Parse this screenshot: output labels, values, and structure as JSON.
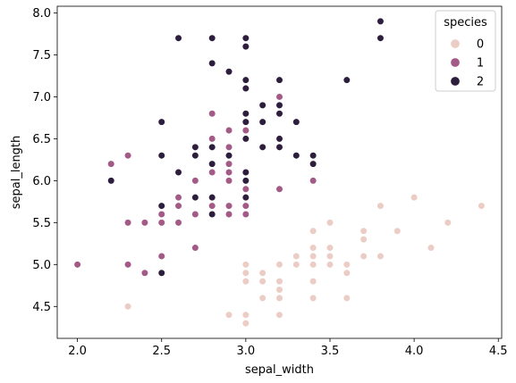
{
  "chart_data": {
    "type": "scatter",
    "xlabel": "sepal_width",
    "ylabel": "sepal_length",
    "xlim": [
      1.88,
      4.52
    ],
    "ylim": [
      4.12,
      8.08
    ],
    "xticks": [
      "2.0",
      "2.5",
      "3.0",
      "3.5",
      "4.0",
      "4.5"
    ],
    "yticks": [
      "4.5",
      "5.0",
      "5.5",
      "6.0",
      "6.5",
      "7.0",
      "7.5",
      "8.0"
    ],
    "grid": false,
    "legend": {
      "title": "species",
      "placement": "top-right"
    },
    "series": [
      {
        "name": "0",
        "color": "#ebcdc6",
        "points": [
          [
            3.0,
            4.4
          ],
          [
            3.0,
            4.3
          ],
          [
            2.9,
            4.4
          ],
          [
            3.2,
            4.4
          ],
          [
            2.3,
            4.5
          ],
          [
            3.1,
            4.6
          ],
          [
            3.2,
            4.6
          ],
          [
            3.4,
            4.6
          ],
          [
            3.6,
            4.6
          ],
          [
            3.2,
            4.7
          ],
          [
            3.2,
            4.8
          ],
          [
            3.0,
            4.8
          ],
          [
            3.1,
            4.8
          ],
          [
            3.4,
            4.8
          ],
          [
            3.0,
            4.9
          ],
          [
            3.1,
            4.9
          ],
          [
            3.6,
            4.9
          ],
          [
            3.0,
            5.0
          ],
          [
            3.2,
            5.0
          ],
          [
            3.3,
            5.0
          ],
          [
            3.4,
            5.0
          ],
          [
            3.5,
            5.0
          ],
          [
            3.6,
            5.0
          ],
          [
            3.3,
            5.1
          ],
          [
            3.4,
            5.1
          ],
          [
            3.5,
            5.1
          ],
          [
            3.7,
            5.1
          ],
          [
            3.8,
            5.1
          ],
          [
            3.4,
            5.2
          ],
          [
            3.5,
            5.2
          ],
          [
            4.1,
            5.2
          ],
          [
            3.7,
            5.3
          ],
          [
            3.4,
            5.4
          ],
          [
            3.7,
            5.4
          ],
          [
            3.9,
            5.4
          ],
          [
            3.5,
            5.5
          ],
          [
            4.2,
            5.5
          ],
          [
            3.8,
            5.7
          ],
          [
            4.4,
            5.7
          ],
          [
            4.0,
            5.8
          ]
        ]
      },
      {
        "name": "1",
        "color": "#a35a87",
        "points": [
          [
            2.0,
            5.0
          ],
          [
            2.3,
            5.0
          ],
          [
            2.4,
            4.9
          ],
          [
            2.5,
            5.1
          ],
          [
            2.7,
            5.2
          ],
          [
            2.3,
            5.5
          ],
          [
            2.4,
            5.5
          ],
          [
            2.5,
            5.5
          ],
          [
            2.6,
            5.5
          ],
          [
            2.5,
            5.6
          ],
          [
            2.7,
            5.6
          ],
          [
            2.9,
            5.6
          ],
          [
            3.0,
            5.6
          ],
          [
            2.6,
            5.7
          ],
          [
            2.8,
            5.7
          ],
          [
            2.9,
            5.7
          ],
          [
            3.0,
            5.7
          ],
          [
            2.6,
            5.8
          ],
          [
            2.7,
            5.8
          ],
          [
            3.0,
            5.9
          ],
          [
            3.2,
            5.9
          ],
          [
            2.2,
            6.0
          ],
          [
            2.7,
            6.0
          ],
          [
            2.9,
            6.0
          ],
          [
            3.4,
            6.0
          ],
          [
            2.8,
            6.1
          ],
          [
            2.9,
            6.1
          ],
          [
            3.0,
            6.1
          ],
          [
            2.2,
            6.2
          ],
          [
            2.9,
            6.2
          ],
          [
            2.3,
            6.3
          ],
          [
            2.5,
            6.3
          ],
          [
            3.3,
            6.3
          ],
          [
            2.9,
            6.4
          ],
          [
            3.2,
            6.4
          ],
          [
            2.8,
            6.5
          ],
          [
            2.9,
            6.6
          ],
          [
            3.0,
            6.6
          ],
          [
            3.0,
            6.7
          ],
          [
            3.1,
            6.7
          ],
          [
            2.8,
            6.8
          ],
          [
            3.1,
            6.9
          ],
          [
            3.2,
            7.0
          ]
        ]
      },
      {
        "name": "2",
        "color": "#2d1e3e",
        "points": [
          [
            2.5,
            4.9
          ],
          [
            2.5,
            5.7
          ],
          [
            2.8,
            5.6
          ],
          [
            2.8,
            5.8
          ],
          [
            2.7,
            5.8
          ],
          [
            3.0,
            5.8
          ],
          [
            2.2,
            6.0
          ],
          [
            3.0,
            6.0
          ],
          [
            3.0,
            6.1
          ],
          [
            2.6,
            6.1
          ],
          [
            2.8,
            6.2
          ],
          [
            3.4,
            6.2
          ],
          [
            2.5,
            6.3
          ],
          [
            2.7,
            6.3
          ],
          [
            2.9,
            6.3
          ],
          [
            3.3,
            6.3
          ],
          [
            3.4,
            6.3
          ],
          [
            2.7,
            6.4
          ],
          [
            2.8,
            6.4
          ],
          [
            3.1,
            6.4
          ],
          [
            3.2,
            6.4
          ],
          [
            3.0,
            6.5
          ],
          [
            3.2,
            6.5
          ],
          [
            2.5,
            6.7
          ],
          [
            3.0,
            6.7
          ],
          [
            3.1,
            6.7
          ],
          [
            3.3,
            6.7
          ],
          [
            3.0,
            6.8
          ],
          [
            3.2,
            6.8
          ],
          [
            3.1,
            6.9
          ],
          [
            3.2,
            6.9
          ],
          [
            3.0,
            7.1
          ],
          [
            3.0,
            7.2
          ],
          [
            3.2,
            7.2
          ],
          [
            3.6,
            7.2
          ],
          [
            2.9,
            7.3
          ],
          [
            2.8,
            7.4
          ],
          [
            3.0,
            7.6
          ],
          [
            2.6,
            7.7
          ],
          [
            2.8,
            7.7
          ],
          [
            3.0,
            7.7
          ],
          [
            3.8,
            7.7
          ],
          [
            3.8,
            7.9
          ]
        ]
      }
    ]
  }
}
